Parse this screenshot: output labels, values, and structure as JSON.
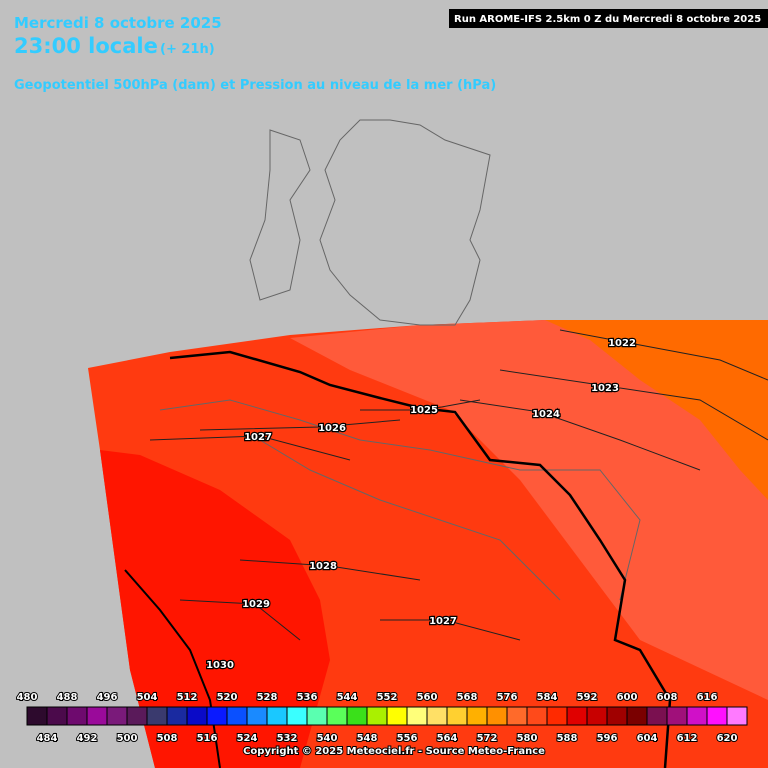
{
  "header": {
    "date": "Mercredi 8 octobre 2025",
    "time": "23:00 locale",
    "offset": "(+ 21h)",
    "product": "Geopotentiel 500hPa (dam) et Pression au niveau de la mer (hPa)",
    "run": "Run AROME-IFS 2.5km 0 Z du Mercredi 8 octobre 2025"
  },
  "isobars": [
    {
      "label": "1022"
    },
    {
      "label": "1023"
    },
    {
      "label": "1024"
    },
    {
      "label": "1025"
    },
    {
      "label": "1026"
    },
    {
      "label": "1027"
    },
    {
      "label": "1028"
    },
    {
      "label": "1029"
    },
    {
      "label": "1030"
    },
    {
      "label": "1027"
    }
  ],
  "legend": {
    "top_labels": [
      480,
      488,
      496,
      504,
      512,
      520,
      528,
      536,
      544,
      552,
      560,
      568,
      576,
      584,
      592,
      600,
      608,
      616
    ],
    "bottom_labels": [
      484,
      492,
      500,
      508,
      516,
      524,
      532,
      540,
      548,
      556,
      564,
      572,
      580,
      588,
      596,
      604,
      612,
      620
    ],
    "colors": [
      "#2d0a2d",
      "#4b0a4b",
      "#6e0a6e",
      "#9a0a9a",
      "#7a1a7a",
      "#5a1a5a",
      "#3a3a6e",
      "#1a2aa0",
      "#0a0ac8",
      "#0a1aff",
      "#0a50ff",
      "#1a8aff",
      "#1ac8ff",
      "#3affff",
      "#5affb0",
      "#5aff5a",
      "#3ae01a",
      "#aaf000",
      "#ffff00",
      "#ffff7a",
      "#ffe066",
      "#ffd030",
      "#ffb000",
      "#ff9000",
      "#ff6a2a",
      "#ff4a1a",
      "#ff2a00",
      "#e00000",
      "#c80000",
      "#a00000",
      "#7a0000",
      "#7a1050",
      "#a0107a",
      "#d010c8",
      "#ff10ff",
      "#ff7aff"
    ]
  },
  "copyright": "Copyright © 2025 Meteociel.fr - Source Meteo-France"
}
